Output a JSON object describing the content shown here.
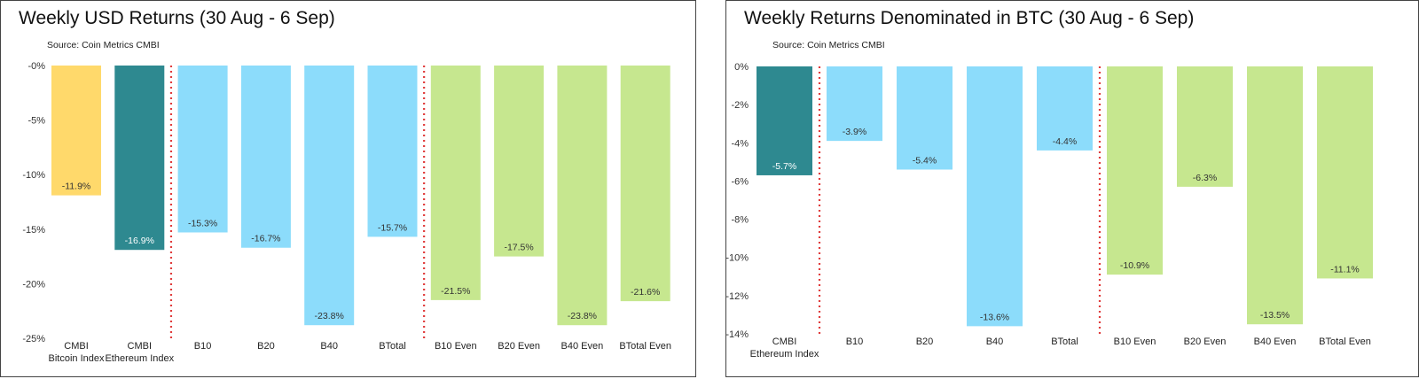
{
  "chart_data": [
    {
      "type": "bar",
      "title": "Weekly USD Returns (30 Aug - 6 Sep)",
      "subtitle": "Source: Coin Metrics CMBI",
      "categories": [
        [
          "CMBI",
          "Bitcoin Index"
        ],
        [
          "CMBI",
          "Ethereum Index"
        ],
        [
          "B10"
        ],
        [
          "B20"
        ],
        [
          "B40"
        ],
        [
          "BTotal"
        ],
        [
          "B10 Even"
        ],
        [
          "B20 Even"
        ],
        [
          "B40 Even"
        ],
        [
          "BTotal Even"
        ]
      ],
      "values": [
        -11.9,
        -16.9,
        -15.3,
        -16.7,
        -23.8,
        -15.7,
        -21.5,
        -17.5,
        -23.8,
        -21.6
      ],
      "value_labels": [
        "-11.9%",
        "-16.9%",
        "-15.3%",
        "-16.7%",
        "-23.8%",
        "-15.7%",
        "-21.5%",
        "-17.5%",
        "-23.8%",
        "-21.6%"
      ],
      "bar_colors": [
        "#ffd96b",
        "#2e8990",
        "#8cdcfb",
        "#8cdcfb",
        "#8cdcfb",
        "#8cdcfb",
        "#c6e78f",
        "#c6e78f",
        "#c6e78f",
        "#c6e78f"
      ],
      "label_colors": [
        "#333333",
        "#ffffff",
        "#333333",
        "#333333",
        "#333333",
        "#333333",
        "#333333",
        "#333333",
        "#333333",
        "#333333"
      ],
      "ylim": [
        -25,
        0
      ],
      "yticks": [
        0,
        -5,
        -10,
        -15,
        -20,
        -25
      ],
      "ytick_labels": [
        "-0%",
        "-5%",
        "-10%",
        "-15%",
        "-20%",
        "-25%"
      ],
      "separator_color": "#e03c3c",
      "separators_after_index": [
        1,
        5
      ],
      "grid": false,
      "xlabel": "",
      "ylabel": ""
    },
    {
      "type": "bar",
      "title": "Weekly Returns Denominated in BTC (30 Aug - 6 Sep)",
      "subtitle": "Source: Coin Metrics CMBI",
      "categories": [
        [
          "CMBI",
          "Ethereum Index"
        ],
        [
          "B10"
        ],
        [
          "B20"
        ],
        [
          "B40"
        ],
        [
          "BTotal"
        ],
        [
          "B10 Even"
        ],
        [
          "B20 Even"
        ],
        [
          "B40 Even"
        ],
        [
          "BTotal Even"
        ]
      ],
      "values": [
        -5.7,
        -3.9,
        -5.4,
        -13.6,
        -4.4,
        -10.9,
        -6.3,
        -13.5,
        -11.1
      ],
      "value_labels": [
        "-5.7%",
        "-3.9%",
        "-5.4%",
        "-13.6%",
        "-4.4%",
        "-10.9%",
        "-6.3%",
        "-13.5%",
        "-11.1%"
      ],
      "bar_colors": [
        "#2e8990",
        "#8cdcfb",
        "#8cdcfb",
        "#8cdcfb",
        "#8cdcfb",
        "#c6e78f",
        "#c6e78f",
        "#c6e78f",
        "#c6e78f"
      ],
      "label_colors": [
        "#ffffff",
        "#333333",
        "#333333",
        "#333333",
        "#333333",
        "#333333",
        "#333333",
        "#333333",
        "#333333"
      ],
      "ylim": [
        -14,
        0
      ],
      "yticks": [
        0,
        -2,
        -4,
        -6,
        -8,
        -10,
        -12,
        -14
      ],
      "ytick_labels": [
        "0%",
        "-2%",
        "-4%",
        "-6%",
        "-8%",
        "-10%",
        "-12%",
        "-14%"
      ],
      "separator_color": "#e03c3c",
      "separators_after_index": [
        0,
        4
      ],
      "grid": false,
      "xlabel": "",
      "ylabel": ""
    }
  ]
}
